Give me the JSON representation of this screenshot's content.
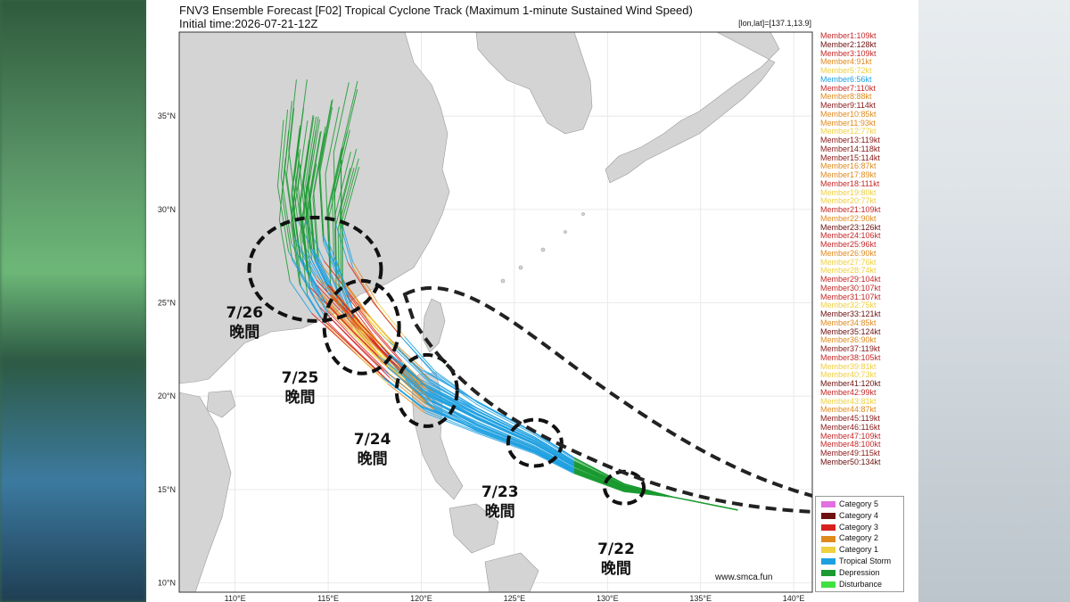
{
  "title": "FNV3 Ensemble Forecast [F02] Tropical Cyclone Track (Maximum 1-minute Sustained Wind Speed)",
  "subtitle": "Initial time:2026-07-21-12Z",
  "coord_label": "[lon,lat]=[137.1,13.9]",
  "website": "www.smca.fun",
  "axes": {
    "x_ticks": [
      "110°E",
      "115°E",
      "120°E",
      "125°E",
      "130°E",
      "135°E",
      "140°E"
    ],
    "y_ticks": [
      "35°N",
      "30°N",
      "25°N",
      "20°N",
      "15°N",
      "10°N"
    ],
    "xlim": [
      107,
      141
    ],
    "ylim": [
      9.5,
      39.5
    ]
  },
  "members": [
    {
      "label": "Member1:109kt",
      "color": "#c62828"
    },
    {
      "label": "Member2:128kt",
      "color": "#6d1010"
    },
    {
      "label": "Member3:109kt",
      "color": "#c62828"
    },
    {
      "label": "Member4:91kt",
      "color": "#e08a1e"
    },
    {
      "label": "Member5:72kt",
      "color": "#f0d040"
    },
    {
      "label": "Member6:56kt",
      "color": "#1ea0e0"
    },
    {
      "label": "Member7:110kt",
      "color": "#c62828"
    },
    {
      "label": "Member8:88kt",
      "color": "#e08a1e"
    },
    {
      "label": "Member9:114kt",
      "color": "#8b1a1a"
    },
    {
      "label": "Member10:85kt",
      "color": "#e08a1e"
    },
    {
      "label": "Member11:93kt",
      "color": "#e08a1e"
    },
    {
      "label": "Member12:77kt",
      "color": "#f0d040"
    },
    {
      "label": "Member13:119kt",
      "color": "#8b1a1a"
    },
    {
      "label": "Member14:118kt",
      "color": "#8b1a1a"
    },
    {
      "label": "Member15:114kt",
      "color": "#8b1a1a"
    },
    {
      "label": "Member16:87kt",
      "color": "#e08a1e"
    },
    {
      "label": "Member17:89kt",
      "color": "#e08a1e"
    },
    {
      "label": "Member18:111kt",
      "color": "#c62828"
    },
    {
      "label": "Member19:80kt",
      "color": "#f0d040"
    },
    {
      "label": "Member20:77kt",
      "color": "#f0d040"
    },
    {
      "label": "Member21:109kt",
      "color": "#c62828"
    },
    {
      "label": "Member22:90kt",
      "color": "#e08a1e"
    },
    {
      "label": "Member23:126kt",
      "color": "#6d1010"
    },
    {
      "label": "Member24:106kt",
      "color": "#c62828"
    },
    {
      "label": "Member25:96kt",
      "color": "#c62828"
    },
    {
      "label": "Member26:90kt",
      "color": "#e08a1e"
    },
    {
      "label": "Member27:76kt",
      "color": "#f0d040"
    },
    {
      "label": "Member28:74kt",
      "color": "#f0d040"
    },
    {
      "label": "Member29:104kt",
      "color": "#c62828"
    },
    {
      "label": "Member30:107kt",
      "color": "#c62828"
    },
    {
      "label": "Member31:107kt",
      "color": "#c62828"
    },
    {
      "label": "Member32:75kt",
      "color": "#f0d040"
    },
    {
      "label": "Member33:121kt",
      "color": "#6d1010"
    },
    {
      "label": "Member34:85kt",
      "color": "#e08a1e"
    },
    {
      "label": "Member35:124kt",
      "color": "#6d1010"
    },
    {
      "label": "Member36:90kt",
      "color": "#e08a1e"
    },
    {
      "label": "Member37:119kt",
      "color": "#8b1a1a"
    },
    {
      "label": "Member38:105kt",
      "color": "#c62828"
    },
    {
      "label": "Member39:81kt",
      "color": "#f0d040"
    },
    {
      "label": "Member40:73kt",
      "color": "#f0d040"
    },
    {
      "label": "Member41:120kt",
      "color": "#6d1010"
    },
    {
      "label": "Member42:99kt",
      "color": "#c62828"
    },
    {
      "label": "Member43:81kt",
      "color": "#f0d040"
    },
    {
      "label": "Member44:87kt",
      "color": "#e08a1e"
    },
    {
      "label": "Member45:119kt",
      "color": "#8b1a1a"
    },
    {
      "label": "Member46:116kt",
      "color": "#8b1a1a"
    },
    {
      "label": "Member47:109kt",
      "color": "#c62828"
    },
    {
      "label": "Member48:100kt",
      "color": "#c62828"
    },
    {
      "label": "Member49:115kt",
      "color": "#8b1a1a"
    },
    {
      "label": "Member50:134kt",
      "color": "#6d1010"
    }
  ],
  "legend": [
    {
      "label": "Category 5",
      "color": "#e070e0"
    },
    {
      "label": "Category 4",
      "color": "#6d1010"
    },
    {
      "label": "Category 3",
      "color": "#d62020"
    },
    {
      "label": "Category 2",
      "color": "#e08a1e"
    },
    {
      "label": "Category 1",
      "color": "#f0d040"
    },
    {
      "label": "Tropical Storm",
      "color": "#1ea0e0"
    },
    {
      "label": "Depression",
      "color": "#1a9a30"
    },
    {
      "label": "Disturbance",
      "color": "#40e040"
    }
  ],
  "annotations": [
    {
      "date": "7/22",
      "night": "晚間",
      "lon": 130.9,
      "lat": 15.1
    },
    {
      "date": "7/23",
      "night": "晚間",
      "lon": 126.1,
      "lat": 17.5
    },
    {
      "date": "7/24",
      "night": "晚間",
      "lon": 120.3,
      "lat": 20.3
    },
    {
      "date": "7/25",
      "night": "晚間",
      "lon": 116.8,
      "lat": 23.7
    },
    {
      "date": "7/26",
      "night": "晚間",
      "lon": 114.3,
      "lat": 26.8
    }
  ],
  "track_colors": {
    "storm": "#1ea0e0",
    "depression": "#1a9a30",
    "disturbance": "#40e040",
    "typhoon": "#d62020",
    "cat2": "#e08a1e",
    "cat1": "#f0d040"
  },
  "land_color": "#d4d4d4",
  "sea_color": "#ffffff"
}
